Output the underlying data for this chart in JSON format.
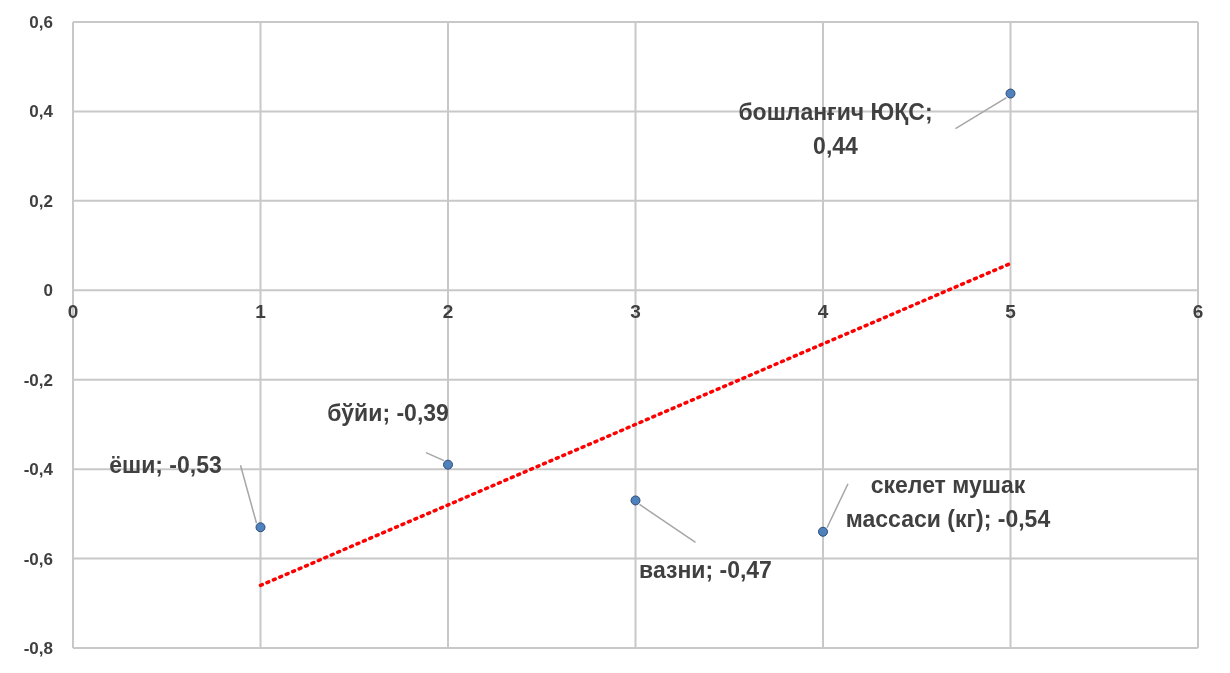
{
  "chart_data": {
    "type": "scatter",
    "xlim": [
      0,
      6
    ],
    "xticks": [
      0,
      1,
      2,
      3,
      4,
      5,
      6
    ],
    "ylim": [
      -0.8,
      0.6
    ],
    "yticks": [
      {
        "value": -0.8,
        "label": "-0,8"
      },
      {
        "value": -0.6,
        "label": "-0,6"
      },
      {
        "value": -0.4,
        "label": "-0,4"
      },
      {
        "value": -0.2,
        "label": "-0,2"
      },
      {
        "value": 0,
        "label": "0"
      },
      {
        "value": 0.2,
        "label": "0,2"
      },
      {
        "value": 0.4,
        "label": "0,4"
      },
      {
        "value": 0.6,
        "label": "0,6"
      }
    ],
    "grid": true,
    "marker": "circle",
    "series": [
      {
        "color": "#4f81bd",
        "x": [
          1,
          2,
          3,
          4,
          5
        ],
        "values": [
          -0.53,
          -0.39,
          -0.47,
          -0.54,
          0.44
        ]
      },
      {
        "type": "line",
        "color": "#ff0000",
        "line_style": "dotted",
        "marker": "none",
        "x": [
          1,
          5
        ],
        "values": [
          -0.66,
          0.06
        ]
      }
    ],
    "annotations": [
      {
        "text": "ёши; -0,53",
        "x": 1,
        "y": -0.53
      },
      {
        "text": "бўйи; -0,39",
        "x": 2,
        "y": -0.39
      },
      {
        "text": "вазни; -0,47",
        "x": 3,
        "y": -0.47
      },
      {
        "text": "скелет мушак массаси (кг); -0,54",
        "x": 4,
        "y": -0.54
      },
      {
        "text": "бошланғич ЮҚС; 0,44",
        "x": 5,
        "y": 0.44
      }
    ]
  }
}
